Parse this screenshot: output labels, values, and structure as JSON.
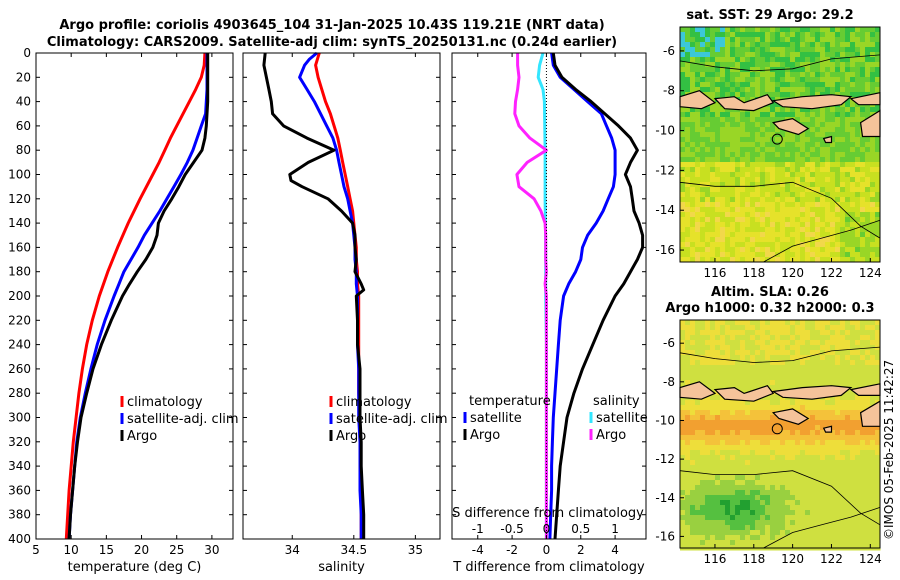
{
  "title": {
    "line1": "Argo profile: coriolis 4903645_104 31-Jan-2025 10.43S 119.21E (NRT data)",
    "line2": "Climatology: CARS2009. Satellite-adj clim: synTS_20250131.nc (0.24d earlier)"
  },
  "colors": {
    "climatology": "#ff0000",
    "satellite": "#0000ff",
    "argo": "#000000",
    "sat_salinity": "#33e6ff",
    "argo_salinity_diff": "#ff22ff"
  },
  "chart_data": [
    {
      "type": "line",
      "id": "temperature",
      "xlabel": "temperature (deg C)",
      "ylabel": "",
      "xlim": [
        5,
        33
      ],
      "ylim": [
        400,
        0
      ],
      "xticks": [
        5,
        10,
        15,
        20,
        25,
        30
      ],
      "yticks": [
        0,
        20,
        40,
        60,
        80,
        100,
        120,
        140,
        160,
        180,
        200,
        220,
        240,
        260,
        280,
        300,
        320,
        340,
        360,
        380,
        400
      ],
      "legend": {
        "entries": [
          "climatology",
          "satellite-adj. clim",
          "Argo"
        ]
      },
      "series": [
        {
          "name": "climatology",
          "color": "#ff0000",
          "depth": [
            0,
            10,
            20,
            30,
            40,
            50,
            60,
            70,
            80,
            90,
            100,
            120,
            140,
            160,
            180,
            200,
            220,
            240,
            260,
            280,
            300,
            320,
            340,
            360,
            380,
            400
          ],
          "values": [
            29.0,
            28.9,
            28.5,
            27.7,
            26.8,
            25.9,
            25.0,
            24.1,
            23.3,
            22.5,
            21.6,
            19.8,
            18.1,
            16.6,
            15.2,
            14.0,
            13.0,
            12.2,
            11.6,
            11.1,
            10.7,
            10.3,
            10.0,
            9.7,
            9.5,
            9.3
          ]
        },
        {
          "name": "satellite-adj. clim",
          "color": "#0000ff",
          "depth": [
            0,
            10,
            20,
            30,
            40,
            50,
            60,
            70,
            80,
            90,
            100,
            110,
            120,
            130,
            140,
            150,
            160,
            170,
            180,
            190,
            200,
            220,
            240,
            260,
            280,
            300,
            320,
            340,
            360,
            380,
            400
          ],
          "values": [
            29.3,
            29.3,
            29.3,
            29.3,
            29.2,
            29.1,
            28.5,
            27.9,
            27.3,
            26.5,
            25.6,
            24.6,
            23.6,
            22.6,
            21.5,
            20.4,
            19.5,
            18.5,
            17.5,
            16.8,
            16.1,
            14.8,
            13.7,
            12.8,
            12.0,
            11.3,
            10.8,
            10.5,
            10.2,
            9.9,
            9.7
          ]
        },
        {
          "name": "Argo",
          "color": "#000000",
          "depth": [
            0,
            10,
            20,
            30,
            40,
            50,
            60,
            70,
            80,
            90,
            100,
            110,
            120,
            130,
            140,
            150,
            160,
            170,
            180,
            190,
            200,
            220,
            240,
            260,
            280,
            300,
            320,
            340,
            360,
            380,
            400
          ],
          "values": [
            29.4,
            29.4,
            29.4,
            29.4,
            29.4,
            29.3,
            29.2,
            29.0,
            28.6,
            27.4,
            26.2,
            25.3,
            24.3,
            23.2,
            22.4,
            22.2,
            21.6,
            20.6,
            19.4,
            18.3,
            17.3,
            15.7,
            14.3,
            13.1,
            12.2,
            11.4,
            10.9,
            10.5,
            10.2,
            9.9,
            9.7
          ]
        }
      ]
    },
    {
      "type": "line",
      "id": "salinity",
      "xlabel": "salinity",
      "xlim": [
        33.6,
        35.2
      ],
      "ylim": [
        400,
        0
      ],
      "xticks": [
        34,
        34.5,
        35
      ],
      "legend": {
        "entries": [
          "climatology",
          "satellite-adj. clim",
          "Argo"
        ]
      },
      "series": [
        {
          "name": "climatology",
          "color": "#ff0000",
          "depth": [
            0,
            10,
            20,
            30,
            40,
            50,
            60,
            70,
            80,
            90,
            100,
            110,
            120,
            130,
            140,
            150,
            160,
            170,
            180,
            190,
            200,
            220,
            240,
            260,
            280,
            300,
            320,
            340,
            360,
            380,
            400
          ],
          "values": [
            34.22,
            34.19,
            34.21,
            34.24,
            34.27,
            34.31,
            34.34,
            34.37,
            34.39,
            34.41,
            34.43,
            34.45,
            34.47,
            34.49,
            34.5,
            34.51,
            34.52,
            34.52,
            34.53,
            34.53,
            34.54,
            34.54,
            34.54,
            34.54,
            34.54,
            34.55,
            34.55,
            34.55,
            34.56,
            34.56,
            34.56
          ]
        },
        {
          "name": "satellite-adj. clim",
          "color": "#0000ff",
          "depth": [
            0,
            5,
            10,
            20,
            30,
            40,
            50,
            60,
            70,
            80,
            90,
            100,
            110,
            120,
            130,
            140,
            150,
            160,
            170,
            180,
            190,
            200,
            220,
            240,
            260,
            280,
            300,
            320,
            340,
            360,
            380,
            400
          ],
          "values": [
            34.2,
            34.14,
            34.1,
            34.06,
            34.12,
            34.18,
            34.23,
            34.28,
            34.33,
            34.36,
            34.38,
            34.4,
            34.42,
            34.45,
            34.47,
            34.49,
            34.5,
            34.51,
            34.51,
            34.52,
            34.52,
            34.53,
            34.53,
            34.53,
            34.54,
            34.54,
            34.54,
            34.55,
            34.55,
            34.55,
            34.56,
            34.56
          ]
        },
        {
          "name": "Argo",
          "color": "#000000",
          "depth": [
            0,
            10,
            20,
            30,
            40,
            50,
            60,
            70,
            80,
            90,
            100,
            105,
            110,
            120,
            130,
            140,
            150,
            160,
            170,
            180,
            190,
            195,
            200,
            220,
            240,
            260,
            280,
            300,
            320,
            340,
            360,
            380,
            400
          ],
          "values": [
            33.78,
            33.77,
            33.79,
            33.81,
            33.83,
            33.84,
            33.93,
            34.12,
            34.34,
            34.13,
            33.98,
            33.99,
            34.08,
            34.29,
            34.4,
            34.49,
            34.51,
            34.51,
            34.52,
            34.51,
            34.56,
            34.58,
            34.52,
            34.53,
            34.53,
            34.55,
            34.55,
            34.55,
            34.56,
            34.56,
            34.57,
            34.58,
            34.58
          ]
        }
      ]
    },
    {
      "type": "line",
      "id": "difference",
      "xlabel": "T difference from climatology",
      "xlabel_top": "S difference from climatology",
      "xlim": [
        -5.5,
        5.8
      ],
      "ylim": [
        400,
        0
      ],
      "xticks": [
        -4,
        -2,
        0,
        2,
        4
      ],
      "s_xticks": [
        -1,
        -0.5,
        0,
        0.5,
        1
      ],
      "legend": {
        "temperature_header": "temperature",
        "salinity_header": "salinity",
        "entries_t": [
          "satellite",
          "Argo"
        ],
        "entries_s": [
          "satellite",
          "Argo"
        ]
      },
      "series": [
        {
          "name": "T satellite",
          "color": "#0000ff",
          "depth": [
            0,
            10,
            20,
            30,
            40,
            50,
            60,
            70,
            80,
            90,
            100,
            110,
            120,
            130,
            140,
            150,
            160,
            170,
            180,
            190,
            200,
            220,
            240,
            260,
            280,
            300,
            320,
            340,
            360,
            380,
            400
          ],
          "values": [
            0.3,
            0.4,
            0.8,
            1.6,
            2.4,
            3.2,
            3.5,
            3.8,
            4.0,
            4.0,
            4.0,
            3.9,
            3.6,
            3.3,
            2.9,
            2.4,
            2.1,
            2.0,
            1.7,
            1.3,
            1.0,
            0.8,
            0.7,
            0.6,
            0.5,
            0.4,
            0.35,
            0.3,
            0.3,
            0.25,
            0.2
          ]
        },
        {
          "name": "T Argo",
          "color": "#000000",
          "depth": [
            0,
            10,
            20,
            30,
            40,
            50,
            60,
            70,
            80,
            90,
            100,
            110,
            120,
            130,
            140,
            150,
            160,
            170,
            180,
            190,
            200,
            220,
            240,
            260,
            280,
            300,
            320,
            340,
            360,
            380,
            400
          ],
          "values": [
            0.4,
            0.5,
            0.9,
            1.7,
            2.6,
            3.4,
            4.2,
            4.9,
            5.3,
            4.9,
            4.6,
            4.9,
            5.0,
            5.1,
            5.4,
            5.6,
            5.6,
            5.3,
            4.9,
            4.5,
            4.0,
            3.3,
            2.7,
            2.1,
            1.6,
            1.2,
            1.0,
            0.8,
            0.7,
            0.6,
            0.5
          ]
        },
        {
          "name": "S satellite",
          "color": "#33e6ff",
          "depth": [
            0,
            10,
            20,
            30,
            40,
            80,
            120,
            160,
            200,
            240,
            280,
            320,
            360,
            400
          ],
          "s_values": [
            -0.05,
            -0.1,
            -0.12,
            -0.05,
            -0.03,
            -0.02,
            -0.02,
            -0.01,
            -0.01,
            0,
            0,
            0,
            0,
            0
          ]
        },
        {
          "name": "S Argo",
          "color": "#ff22ff",
          "depth": [
            0,
            10,
            20,
            30,
            40,
            50,
            60,
            70,
            80,
            90,
            100,
            110,
            120,
            130,
            140,
            150,
            160,
            170,
            180,
            190,
            200,
            220,
            240,
            260,
            280,
            300,
            320,
            340,
            360,
            380,
            400
          ],
          "s_values": [
            -0.42,
            -0.42,
            -0.4,
            -0.42,
            -0.45,
            -0.46,
            -0.4,
            -0.24,
            0.0,
            -0.28,
            -0.43,
            -0.4,
            -0.18,
            -0.08,
            -0.02,
            -0.01,
            -0.01,
            -0.01,
            0.0,
            -0.02,
            0.0,
            0.0,
            0.0,
            0.0,
            0.0,
            0.0,
            0.0,
            0.0,
            0.0,
            0.0,
            0.0
          ]
        }
      ]
    },
    {
      "type": "heatmap",
      "id": "sst-map",
      "title": "sat. SST: 29 Argo: 29.2",
      "xticks": [
        116,
        118,
        120,
        122,
        124
      ],
      "yticks": [
        -6,
        -8,
        -10,
        -12,
        -14,
        -16
      ],
      "xlim": [
        114.2,
        124.5
      ],
      "ylim": [
        -16.6,
        -4.8
      ],
      "argo_position": [
        119.21,
        -10.43
      ]
    },
    {
      "type": "heatmap",
      "id": "sla-map",
      "title_line1": "Altim. SLA: 0.26",
      "title_line2": "Argo h1000: 0.32 h2000: 0.3",
      "xticks": [
        116,
        118,
        120,
        122,
        124
      ],
      "yticks": [
        -6,
        -8,
        -10,
        -12,
        -14,
        -16
      ],
      "xlim": [
        114.2,
        124.5
      ],
      "ylim": [
        -16.6,
        -4.8
      ],
      "argo_position": [
        119.21,
        -10.43
      ]
    }
  ],
  "stamp": "©IMOS 05-Feb-2025 11:42:27"
}
